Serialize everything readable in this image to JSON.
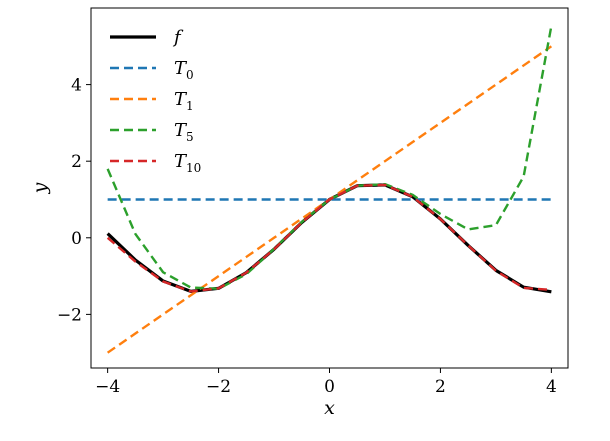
{
  "chart_data": {
    "type": "line",
    "title": "",
    "xlabel": "x",
    "ylabel": "y",
    "xlim": [
      -4.3,
      4.3
    ],
    "ylim": [
      -3.4,
      6.0
    ],
    "grid": false,
    "legend_position": "top-left",
    "x_ticks": [
      -4,
      -2,
      0,
      2,
      4
    ],
    "x_tick_labels": [
      "−4",
      "−2",
      "0",
      "2",
      "4"
    ],
    "y_ticks": [
      -2,
      0,
      2,
      4
    ],
    "y_tick_labels": [
      "−2",
      "0",
      "2",
      "4"
    ],
    "x": [
      -4.0,
      -3.5,
      -3.0,
      -2.5,
      -2.0,
      -1.5,
      -1.0,
      -0.5,
      0.0,
      0.5,
      1.0,
      1.5,
      2.0,
      2.5,
      3.0,
      3.5,
      4.0
    ],
    "series": [
      {
        "name": "f",
        "label_main": "f",
        "label_sub": "",
        "color": "#000000",
        "style": "solid",
        "values": [
          0.11,
          -0.58,
          -1.13,
          -1.4,
          -1.32,
          -0.91,
          -0.3,
          0.4,
          1.0,
          1.36,
          1.38,
          1.07,
          0.49,
          -0.2,
          -0.85,
          -1.29,
          -1.41
        ]
      },
      {
        "name": "T_0",
        "label_main": "T",
        "label_sub": "0",
        "color": "#1f77b4",
        "style": "dashed",
        "values": [
          1.0,
          1.0,
          1.0,
          1.0,
          1.0,
          1.0,
          1.0,
          1.0,
          1.0,
          1.0,
          1.0,
          1.0,
          1.0,
          1.0,
          1.0,
          1.0,
          1.0
        ]
      },
      {
        "name": "T_1",
        "label_main": "T",
        "label_sub": "1",
        "color": "#ff7f0e",
        "style": "dashed",
        "values": [
          -3.0,
          -2.5,
          -2.0,
          -1.5,
          -1.0,
          -0.5,
          0.0,
          0.5,
          1.0,
          1.5,
          2.0,
          2.5,
          3.0,
          3.5,
          4.0,
          4.5,
          5.0
        ]
      },
      {
        "name": "T_5",
        "label_main": "T",
        "label_sub": "5",
        "color": "#2ca02c",
        "style": "dashed",
        "values": [
          1.8,
          0.1,
          -0.9,
          -1.3,
          -1.33,
          -0.95,
          -0.29,
          0.41,
          1.0,
          1.36,
          1.4,
          1.12,
          0.62,
          0.22,
          0.33,
          1.6,
          5.53
        ]
      },
      {
        "name": "T_10",
        "label_main": "T",
        "label_sub": "10",
        "color": "#d62728",
        "style": "dashed",
        "values": [
          0.0,
          -0.62,
          -1.14,
          -1.4,
          -1.32,
          -0.91,
          -0.3,
          0.4,
          1.0,
          1.36,
          1.38,
          1.07,
          0.49,
          -0.2,
          -0.86,
          -1.31,
          -1.36
        ]
      }
    ]
  }
}
